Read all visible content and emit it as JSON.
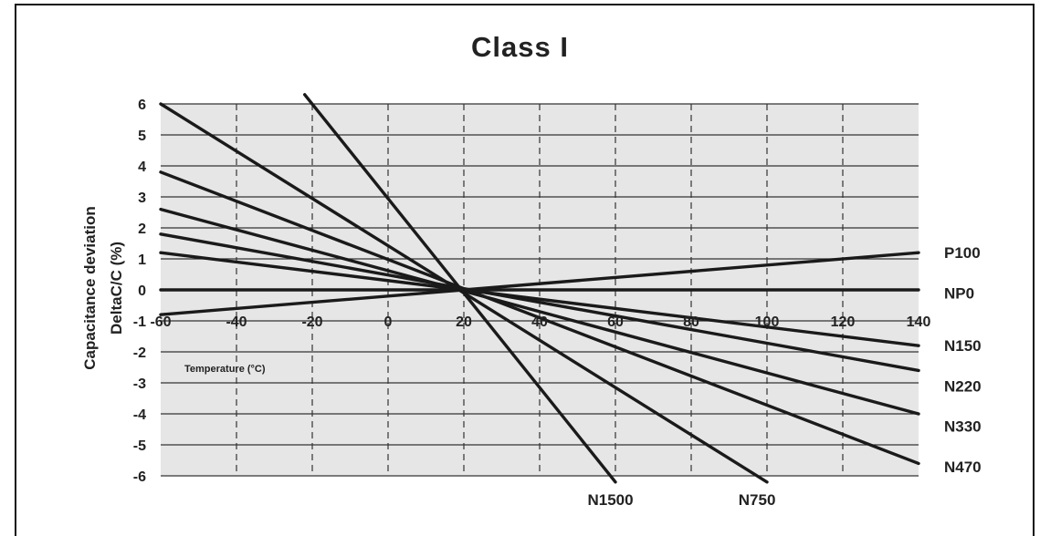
{
  "chart_data": {
    "type": "line",
    "title": "Class I",
    "xlabel": "Temperature (°C)",
    "ylabel_line1": "Capacitance deviation",
    "ylabel_line2": "DeltaC/C (%)",
    "xlim": [
      -60,
      140
    ],
    "ylim": [
      -6,
      6
    ],
    "x_ticks": [
      -60,
      -40,
      -20,
      0,
      20,
      40,
      60,
      80,
      100,
      120,
      140
    ],
    "x_tick_labels": [
      "-60",
      "-40",
      "-20",
      "0",
      "20",
      "40",
      "60",
      "80",
      "100",
      "120",
      "140"
    ],
    "y_ticks": [
      6,
      5,
      4,
      3,
      2,
      1,
      0,
      -1,
      -2,
      -3,
      -4,
      -5,
      -6
    ],
    "y_tick_labels": [
      "6",
      "5",
      "4",
      "3",
      "2",
      "1",
      "0",
      "-1",
      "-2",
      "-3",
      "-4",
      "-5",
      "-6"
    ],
    "grid": true,
    "plot_background": "#e6e6e6",
    "line_color": "#1a1a1a",
    "series": [
      {
        "name": "P100",
        "x": [
          -60,
          140
        ],
        "y": [
          -0.8,
          1.2
        ]
      },
      {
        "name": "NP0",
        "x": [
          -60,
          140
        ],
        "y": [
          0,
          0
        ]
      },
      {
        "name": "N150",
        "x": [
          -60,
          140
        ],
        "y": [
          1.2,
          -1.8
        ]
      },
      {
        "name": "N220",
        "x": [
          -60,
          140
        ],
        "y": [
          1.8,
          -2.6
        ]
      },
      {
        "name": "N330",
        "x": [
          -60,
          140
        ],
        "y": [
          2.6,
          -4.0
        ]
      },
      {
        "name": "N470",
        "x": [
          -60,
          140
        ],
        "y": [
          3.8,
          -5.6
        ]
      },
      {
        "name": "N750",
        "x": [
          -60,
          100
        ],
        "y": [
          6.0,
          -6.2
        ]
      },
      {
        "name": "N1500",
        "x": [
          -22,
          60
        ],
        "y": [
          6.3,
          -6.2
        ]
      }
    ]
  }
}
